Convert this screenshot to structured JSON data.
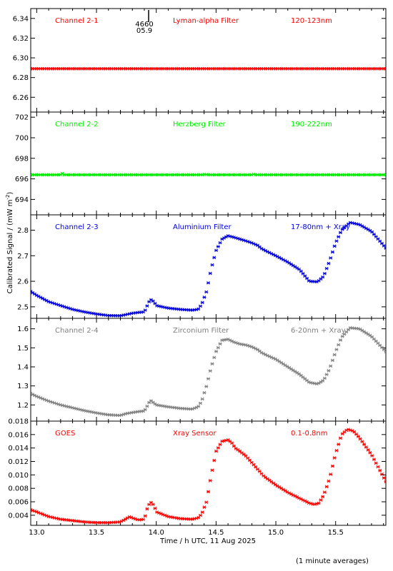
{
  "colors": {
    "red": "#ff0000",
    "green": "#00ee00",
    "blue": "#0000dd",
    "grey": "#808080",
    "axis": "#000000"
  },
  "y_axis_label": "Calibrated Signal / (mW m",
  "y_axis_label_sup": "-2",
  "y_axis_label_end": ")",
  "x_axis_label": "Time / h UTC, 11 Aug 2025",
  "footnote": "(1 minute averages)",
  "marker_label_top": "4660",
  "marker_label_bottom": "05.9",
  "chart_data": [
    {
      "type": "scatter",
      "panel": 1,
      "color": "#ff0000",
      "labels": [
        "Channel 2-1",
        "Lyman-alpha Filter",
        "120-123nm"
      ],
      "xlim": [
        12.95,
        15.92
      ],
      "ylim": [
        6.245,
        6.35
      ],
      "yticks": [
        6.26,
        6.28,
        6.3,
        6.32,
        6.34
      ],
      "ytick_labels": [
        "6.26",
        "6.28",
        "6.30",
        "6.32",
        "6.34"
      ],
      "points": [
        [
          12.95,
          6.289
        ],
        [
          15.92,
          6.289
        ]
      ]
    },
    {
      "type": "scatter",
      "panel": 2,
      "color": "#00ee00",
      "labels": [
        "Channel 2-2",
        "Herzberg Filter",
        "190-222nm"
      ],
      "xlim": [
        12.95,
        15.92
      ],
      "ylim": [
        692.5,
        702.5
      ],
      "yticks": [
        694,
        696,
        698,
        700,
        702
      ],
      "ytick_labels": [
        "694",
        "696",
        "698",
        "700",
        "702"
      ],
      "points": [
        [
          12.95,
          696.4
        ],
        [
          13.2,
          696.4
        ],
        [
          13.21,
          696.6
        ],
        [
          13.22,
          696.4
        ],
        [
          14.4,
          696.4
        ],
        [
          14.41,
          696.55
        ],
        [
          14.42,
          696.4
        ],
        [
          14.8,
          696.4
        ],
        [
          14.81,
          696.5
        ],
        [
          14.82,
          696.4
        ],
        [
          15.92,
          696.4
        ]
      ]
    },
    {
      "type": "scatter",
      "panel": 3,
      "color": "#0000dd",
      "labels": [
        "Channel 2-3",
        "Aluminium Filter",
        "17-80nm + Xray"
      ],
      "xlim": [
        12.95,
        15.92
      ],
      "ylim": [
        2.455,
        2.86
      ],
      "yticks": [
        2.5,
        2.6,
        2.7,
        2.8
      ],
      "ytick_labels": [
        "2.5",
        "2.6",
        "2.7",
        "2.8"
      ],
      "points": [
        [
          12.95,
          2.56
        ],
        [
          13.0,
          2.545
        ],
        [
          13.1,
          2.52
        ],
        [
          13.2,
          2.505
        ],
        [
          13.3,
          2.49
        ],
        [
          13.4,
          2.48
        ],
        [
          13.5,
          2.472
        ],
        [
          13.6,
          2.466
        ],
        [
          13.7,
          2.465
        ],
        [
          13.75,
          2.47
        ],
        [
          13.8,
          2.475
        ],
        [
          13.85,
          2.478
        ],
        [
          13.9,
          2.48
        ],
        [
          13.93,
          2.51
        ],
        [
          13.95,
          2.53
        ],
        [
          13.98,
          2.52
        ],
        [
          14.0,
          2.505
        ],
        [
          14.1,
          2.495
        ],
        [
          14.2,
          2.49
        ],
        [
          14.3,
          2.487
        ],
        [
          14.35,
          2.49
        ],
        [
          14.38,
          2.51
        ],
        [
          14.42,
          2.56
        ],
        [
          14.46,
          2.65
        ],
        [
          14.5,
          2.72
        ],
        [
          14.55,
          2.765
        ],
        [
          14.6,
          2.778
        ],
        [
          14.65,
          2.772
        ],
        [
          14.7,
          2.765
        ],
        [
          14.75,
          2.758
        ],
        [
          14.8,
          2.75
        ],
        [
          14.85,
          2.74
        ],
        [
          14.88,
          2.728
        ],
        [
          14.92,
          2.718
        ],
        [
          15.0,
          2.7
        ],
        [
          15.1,
          2.675
        ],
        [
          15.2,
          2.645
        ],
        [
          15.28,
          2.6
        ],
        [
          15.35,
          2.598
        ],
        [
          15.4,
          2.62
        ],
        [
          15.45,
          2.68
        ],
        [
          15.5,
          2.75
        ],
        [
          15.55,
          2.8
        ],
        [
          15.62,
          2.83
        ],
        [
          15.7,
          2.822
        ],
        [
          15.8,
          2.795
        ],
        [
          15.92,
          2.73
        ]
      ]
    },
    {
      "type": "scatter",
      "panel": 4,
      "color": "#808080",
      "labels": [
        "Channel 2-4",
        "Zirconium Filter",
        "6-20nm + Xray"
      ],
      "xlim": [
        12.95,
        15.92
      ],
      "ylim": [
        1.115,
        1.655
      ],
      "yticks": [
        1.2,
        1.3,
        1.4,
        1.5,
        1.6
      ],
      "ytick_labels": [
        "1.2",
        "1.3",
        "1.4",
        "1.5",
        "1.6"
      ],
      "points": [
        [
          12.95,
          1.26
        ],
        [
          13.0,
          1.245
        ],
        [
          13.1,
          1.22
        ],
        [
          13.2,
          1.2
        ],
        [
          13.3,
          1.185
        ],
        [
          13.4,
          1.17
        ],
        [
          13.5,
          1.158
        ],
        [
          13.6,
          1.148
        ],
        [
          13.7,
          1.145
        ],
        [
          13.75,
          1.155
        ],
        [
          13.8,
          1.16
        ],
        [
          13.85,
          1.165
        ],
        [
          13.9,
          1.168
        ],
        [
          13.93,
          1.2
        ],
        [
          13.95,
          1.225
        ],
        [
          13.98,
          1.21
        ],
        [
          14.0,
          1.2
        ],
        [
          14.1,
          1.19
        ],
        [
          14.2,
          1.182
        ],
        [
          14.3,
          1.178
        ],
        [
          14.35,
          1.19
        ],
        [
          14.38,
          1.22
        ],
        [
          14.42,
          1.3
        ],
        [
          14.46,
          1.4
        ],
        [
          14.5,
          1.48
        ],
        [
          14.55,
          1.54
        ],
        [
          14.6,
          1.545
        ],
        [
          14.65,
          1.53
        ],
        [
          14.7,
          1.52
        ],
        [
          14.75,
          1.515
        ],
        [
          14.8,
          1.505
        ],
        [
          14.85,
          1.49
        ],
        [
          14.88,
          1.475
        ],
        [
          14.92,
          1.462
        ],
        [
          15.0,
          1.44
        ],
        [
          15.1,
          1.4
        ],
        [
          15.2,
          1.36
        ],
        [
          15.28,
          1.318
        ],
        [
          15.35,
          1.31
        ],
        [
          15.4,
          1.33
        ],
        [
          15.45,
          1.39
        ],
        [
          15.5,
          1.48
        ],
        [
          15.55,
          1.555
        ],
        [
          15.62,
          1.605
        ],
        [
          15.7,
          1.6
        ],
        [
          15.8,
          1.56
        ],
        [
          15.92,
          1.48
        ]
      ]
    },
    {
      "type": "scatter",
      "panel": 5,
      "color": "#ff0000",
      "labels": [
        "GOES",
        "Xray Sensor",
        "0.1-0.8nm"
      ],
      "xlim": [
        12.95,
        15.92
      ],
      "ylim": [
        0.0025,
        0.018
      ],
      "yticks": [
        0.004,
        0.006,
        0.008,
        0.01,
        0.012,
        0.014,
        0.016,
        0.018
      ],
      "ytick_labels": [
        "0.004",
        "0.006",
        "0.008",
        "0.010",
        "0.012",
        "0.014",
        "0.016",
        "0.018"
      ],
      "xticks": [
        13.0,
        13.5,
        14.0,
        14.5,
        15.0,
        15.5
      ],
      "xtick_labels": [
        "13.0",
        "13.5",
        "14.0",
        "14.5",
        "15.0",
        "15.5"
      ],
      "points": [
        [
          12.95,
          0.0048
        ],
        [
          13.0,
          0.0045
        ],
        [
          13.1,
          0.0038
        ],
        [
          13.2,
          0.0034
        ],
        [
          13.3,
          0.0032
        ],
        [
          13.4,
          0.003
        ],
        [
          13.5,
          0.0029
        ],
        [
          13.6,
          0.0029
        ],
        [
          13.7,
          0.003
        ],
        [
          13.75,
          0.0035
        ],
        [
          13.78,
          0.0038
        ],
        [
          13.8,
          0.0036
        ],
        [
          13.85,
          0.0033
        ],
        [
          13.9,
          0.0034
        ],
        [
          13.92,
          0.0048
        ],
        [
          13.95,
          0.006
        ],
        [
          13.98,
          0.0055
        ],
        [
          14.0,
          0.0045
        ],
        [
          14.1,
          0.0038
        ],
        [
          14.2,
          0.0035
        ],
        [
          14.3,
          0.0034
        ],
        [
          14.35,
          0.0036
        ],
        [
          14.38,
          0.0042
        ],
        [
          14.42,
          0.006
        ],
        [
          14.46,
          0.01
        ],
        [
          14.5,
          0.0135
        ],
        [
          14.55,
          0.015
        ],
        [
          14.6,
          0.0152
        ],
        [
          14.63,
          0.0148
        ],
        [
          14.66,
          0.014
        ],
        [
          14.7,
          0.0135
        ],
        [
          14.75,
          0.0128
        ],
        [
          14.8,
          0.0118
        ],
        [
          14.85,
          0.0108
        ],
        [
          14.9,
          0.0098
        ],
        [
          15.0,
          0.0085
        ],
        [
          15.1,
          0.0074
        ],
        [
          15.2,
          0.0065
        ],
        [
          15.28,
          0.0058
        ],
        [
          15.32,
          0.0056
        ],
        [
          15.36,
          0.0058
        ],
        [
          15.4,
          0.007
        ],
        [
          15.45,
          0.0095
        ],
        [
          15.5,
          0.0132
        ],
        [
          15.55,
          0.016
        ],
        [
          15.6,
          0.0168
        ],
        [
          15.65,
          0.0165
        ],
        [
          15.7,
          0.0155
        ],
        [
          15.8,
          0.013
        ],
        [
          15.92,
          0.009
        ]
      ]
    }
  ]
}
